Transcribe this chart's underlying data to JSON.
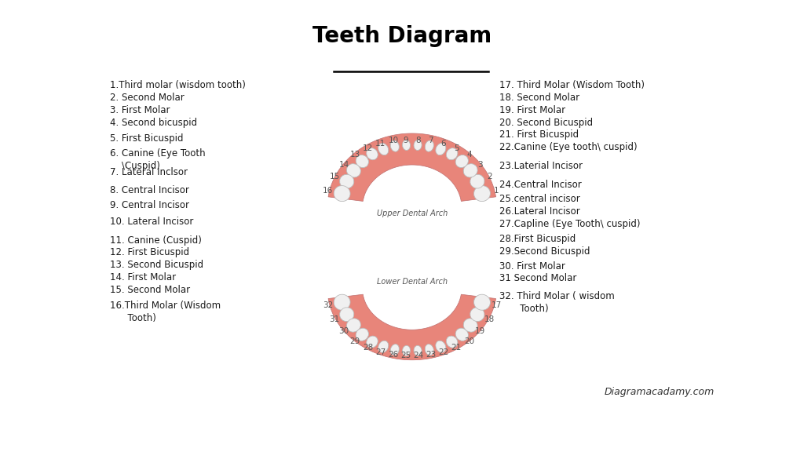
{
  "title": "Teeth Diagram",
  "bg_color": "#ffffff",
  "upper_arch_label": "Upper Dental Arch",
  "lower_arch_label": "Lower Dental Arch",
  "watermark": "Diagramacadamy.com",
  "gum_color": "#E8857A",
  "gum_edge": "#c07070",
  "tooth_color": "#F0F0F0",
  "tooth_outline": "#BBBBBB",
  "text_color": "#1a1a1a",
  "number_color": "#555555",
  "arch_label_color": "#555555",
  "left_labels": [
    [
      "1.Third molar (wisdom tooth)",
      0
    ],
    [
      "2. Second Molar",
      1
    ],
    [
      "3. First Molar",
      2
    ],
    [
      "4. Second bicuspid",
      3
    ],
    [
      "5. First Bicuspid",
      4.3
    ],
    [
      "6. Canine (Eye Tooth\n    \\Cuspid)",
      5.5
    ],
    [
      "7. Lateral Inclsor",
      7
    ],
    [
      "8. Central Incisor",
      8.5
    ],
    [
      "9. Central Incisor",
      9.7
    ],
    [
      "10. Lateral Incisor",
      11
    ],
    [
      "11. Canine (Cuspid)",
      12.5
    ],
    [
      "12. First Bicuspid",
      13.5
    ],
    [
      "13. Second Bicuspid",
      14.5
    ],
    [
      "14. First Molar",
      15.5
    ],
    [
      "15. Second Molar",
      16.5
    ],
    [
      "16.Third Molar (Wisdom\n      Tooth)",
      17.8
    ]
  ],
  "right_labels": [
    [
      "17. Third Molar (Wisdom Tooth)",
      0
    ],
    [
      "18. Second Molar",
      1
    ],
    [
      "19. First Molar",
      2
    ],
    [
      "20. Second Bicuspid",
      3
    ],
    [
      "21. First Bicuspid",
      4
    ],
    [
      "22.Canine (Eye tooth\\ cuspid)",
      5
    ],
    [
      "23.Laterial Incisor",
      6.5
    ],
    [
      "24.Central Incisor",
      8
    ],
    [
      "25.central incisor",
      9.2
    ],
    [
      "26.Lateral Incisor",
      10.2
    ],
    [
      "27.Capline (Eye Tooth\\ cuspid)",
      11.2
    ],
    [
      "28.First Bicuspid",
      12.4
    ],
    [
      "29.Second Bicuspid",
      13.4
    ],
    [
      "30. First Molar",
      14.6
    ],
    [
      "31 Second Molar",
      15.6
    ],
    [
      "32. Third Molar ( wisdom\n       Tooth)",
      17
    ]
  ]
}
